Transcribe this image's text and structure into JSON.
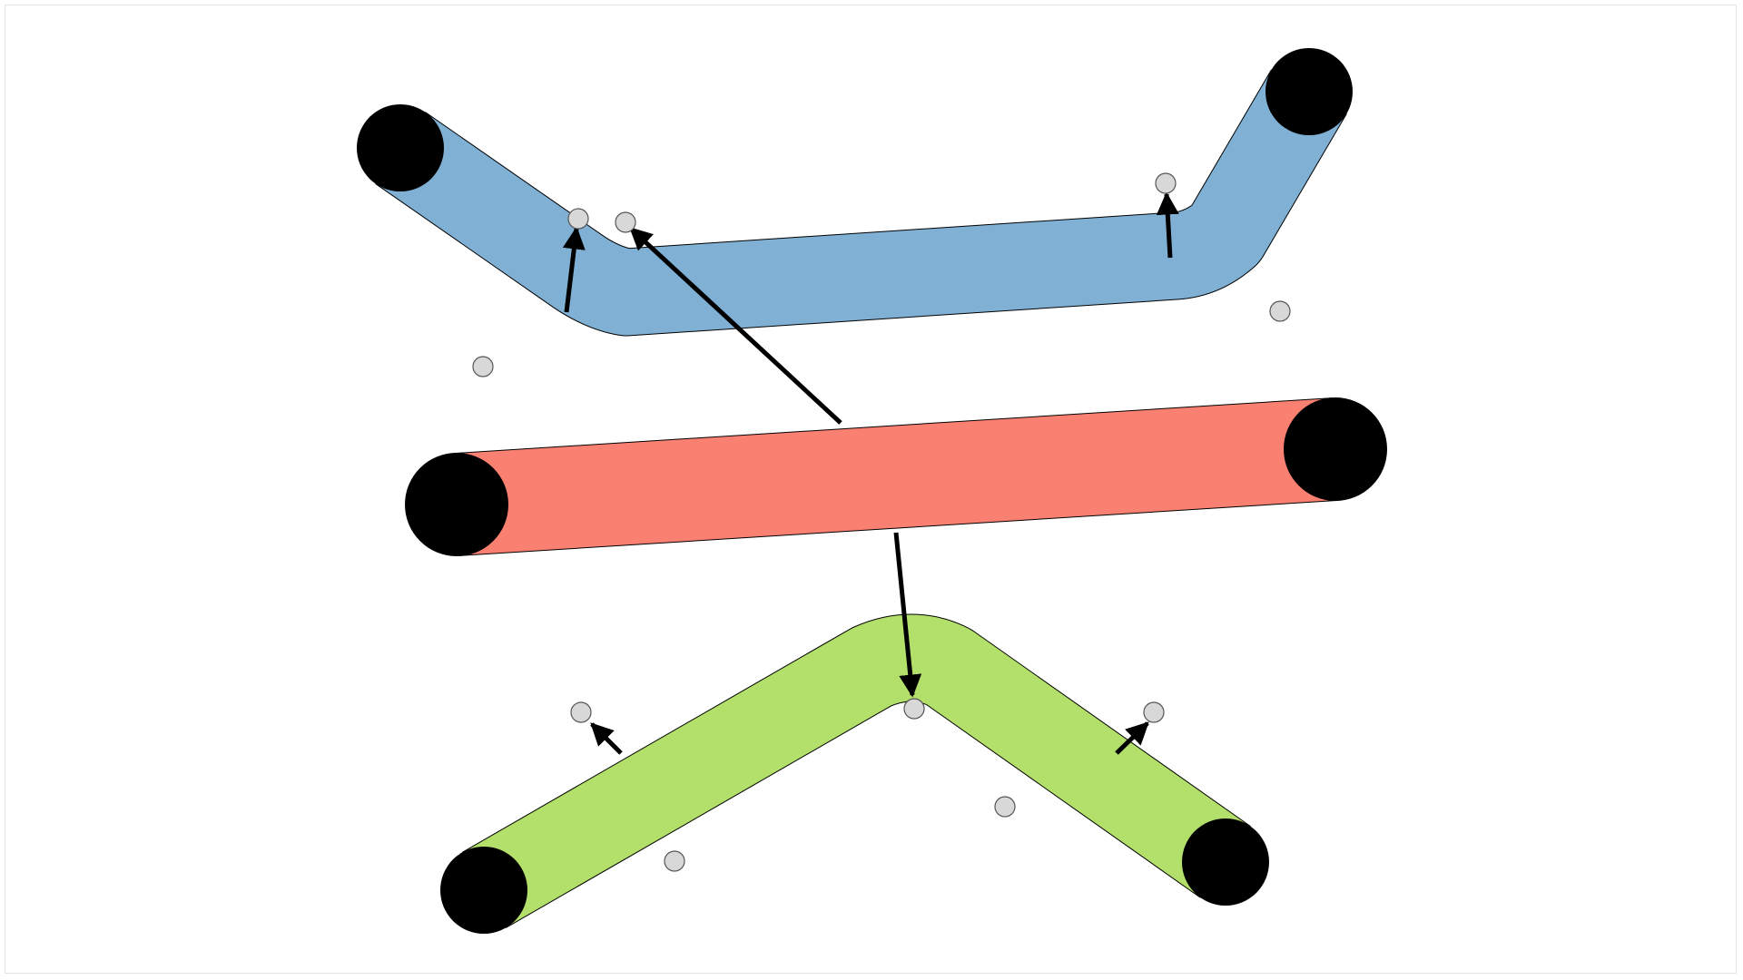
{
  "colors": {
    "background": "#ffffff",
    "frame": "#e4e4e4",
    "outline": "#000000",
    "endpoint": "#000000",
    "marker_fill": "#d8d8d8",
    "marker_stroke": "#555555",
    "arrow": "#000000"
  },
  "segments": [
    {
      "id": "blue-segment",
      "shape": "bent-tube",
      "color": "#80b0d4"
    },
    {
      "id": "red-segment",
      "shape": "straight-tube",
      "color": "#fa8072"
    },
    {
      "id": "green-segment",
      "shape": "bent-tube",
      "color": "#b3df6b"
    }
  ],
  "endpoint_count": 6,
  "marker_count": 10,
  "arrow_count": 6
}
